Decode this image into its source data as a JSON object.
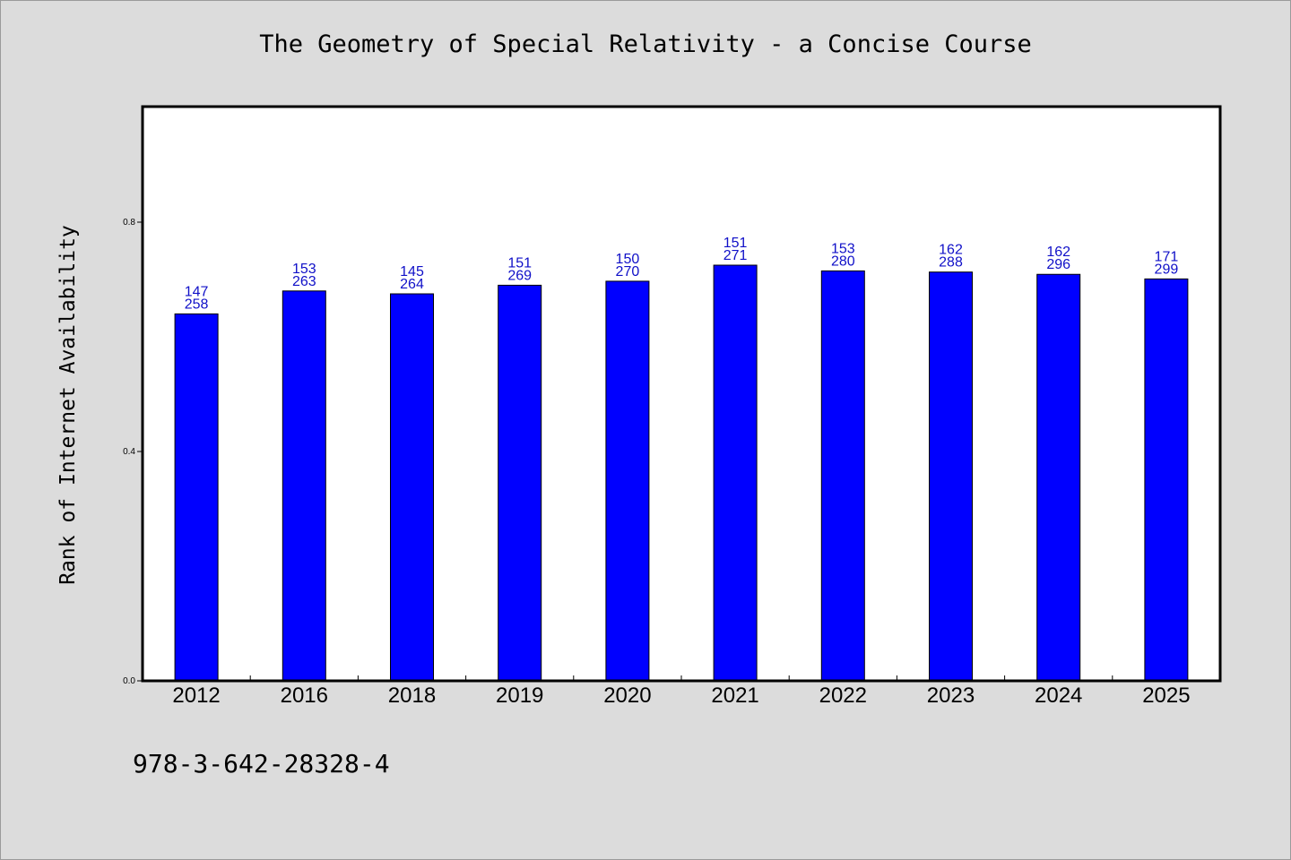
{
  "chart_data": {
    "type": "bar",
    "title": "The Geometry of Special Relativity - a Concise Course",
    "ylabel": "Rank of Internet Availability",
    "xlabel": "",
    "ylim": [
      0,
      1.0
    ],
    "yticks": [
      "0.0",
      "0.4",
      "0.8"
    ],
    "categories": [
      "2012",
      "2016",
      "2018",
      "2019",
      "2020",
      "2021",
      "2022",
      "2023",
      "2024",
      "2025"
    ],
    "values": [
      0.64,
      0.68,
      0.675,
      0.69,
      0.697,
      0.725,
      0.715,
      0.713,
      0.709,
      0.701
    ],
    "bar_labels_top": [
      "147",
      "153",
      "145",
      "151",
      "150",
      "151",
      "153",
      "162",
      "162",
      "171"
    ],
    "bar_labels_bottom": [
      "258",
      "263",
      "264",
      "269",
      "270",
      "271",
      "280",
      "288",
      "296",
      "299"
    ],
    "bar_color": "#0000ff",
    "label_color": "#1010c8",
    "grid": false,
    "legend": "none"
  },
  "footer_text": "978-3-642-28328-4",
  "colors": {
    "background": "#dcdcdc",
    "plot_background": "#ffffff"
  }
}
